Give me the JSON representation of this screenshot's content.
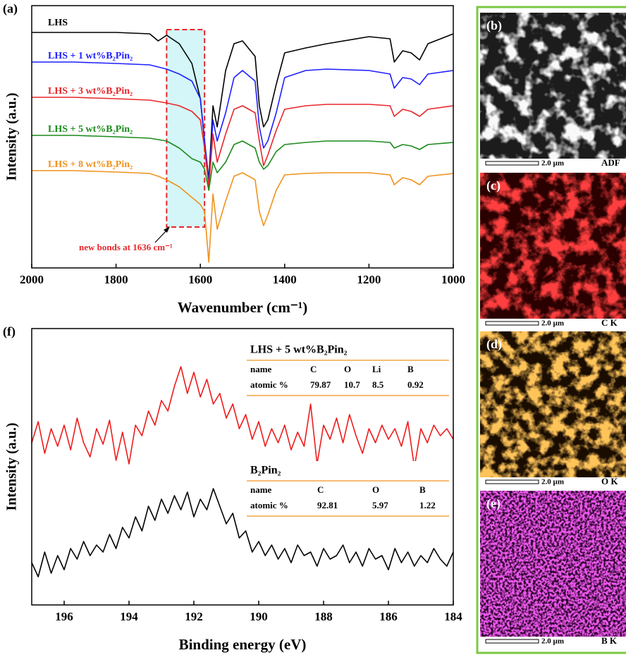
{
  "chart_data": [
    {
      "type": "line",
      "panel": "(a)",
      "xlabel": "Wavenumber (cm⁻¹)",
      "ylabel": "Intensity (a.u.)",
      "x": [
        2000,
        1900,
        1800,
        1720,
        1700,
        1680,
        1650,
        1620,
        1600,
        1590,
        1580,
        1570,
        1560,
        1540,
        1520,
        1500,
        1470,
        1460,
        1450,
        1440,
        1420,
        1400,
        1350,
        1300,
        1200,
        1150,
        1140,
        1120,
        1100,
        1080,
        1060,
        1000
      ],
      "xlim": [
        2000,
        1000
      ],
      "xticks": [
        2000,
        1800,
        1600,
        1400,
        1200,
        1000
      ],
      "ylim": [
        0,
        372
      ],
      "series": [
        {
          "name": "LHS",
          "color": "#000000",
          "values": [
            334,
            334,
            334,
            332,
            322,
            330,
            318,
            290,
            240,
            180,
            125,
            230,
            200,
            280,
            318,
            322,
            300,
            230,
            200,
            210,
            260,
            305,
            312,
            318,
            328,
            325,
            292,
            308,
            305,
            295,
            318,
            332
          ]
        },
        {
          "name": "LHS + 1 wt%B₂Pin₂",
          "color": "#1f1fff",
          "values": [
            292,
            292,
            290,
            288,
            285,
            282,
            275,
            265,
            240,
            180,
            120,
            210,
            180,
            220,
            270,
            280,
            265,
            200,
            170,
            180,
            220,
            270,
            280,
            282,
            280,
            275,
            255,
            270,
            268,
            260,
            275,
            280
          ]
        },
        {
          "name": "LHS + 3 wt%B₂Pin₂",
          "color": "#e8262a",
          "values": [
            242,
            242,
            240,
            238,
            236,
            234,
            230,
            222,
            210,
            170,
            115,
            190,
            150,
            190,
            225,
            230,
            220,
            180,
            145,
            160,
            195,
            225,
            230,
            232,
            232,
            230,
            215,
            225,
            222,
            215,
            225,
            230
          ]
        },
        {
          "name": "LHS + 5 wt%B₂Pin₂",
          "color": "#1c8a1c",
          "values": [
            188,
            188,
            186,
            184,
            182,
            180,
            170,
            155,
            150,
            140,
            110,
            150,
            135,
            150,
            175,
            180,
            170,
            150,
            140,
            145,
            165,
            175,
            178,
            180,
            180,
            178,
            170,
            175,
            173,
            168,
            175,
            178
          ]
        },
        {
          "name": "LHS + 8 wt%B₂Pin₂",
          "color": "#f0921e",
          "values": [
            138,
            138,
            136,
            134,
            130,
            125,
            115,
            100,
            90,
            80,
            8,
            105,
            55,
            95,
            130,
            135,
            125,
            80,
            60,
            75,
            110,
            132,
            134,
            135,
            135,
            132,
            118,
            128,
            125,
            118,
            130,
            134
          ]
        }
      ],
      "highlight_x": [
        1680,
        1590
      ],
      "annotation": "new bonds at 1636 cm⁻¹"
    },
    {
      "type": "line",
      "panel": "(f)",
      "xlabel": "Binding energy (eV)",
      "ylabel": "Intensity (a.u.)",
      "x": [
        197.0,
        196.8,
        196.6,
        196.4,
        196.2,
        196.0,
        195.8,
        195.6,
        195.4,
        195.2,
        195.0,
        194.8,
        194.6,
        194.4,
        194.2,
        194.0,
        193.8,
        193.6,
        193.4,
        193.2,
        193.0,
        192.8,
        192.6,
        192.4,
        192.2,
        192.0,
        191.8,
        191.6,
        191.4,
        191.2,
        191.0,
        190.8,
        190.6,
        190.4,
        190.2,
        190.0,
        189.8,
        189.6,
        189.4,
        189.2,
        189.0,
        188.8,
        188.6,
        188.4,
        188.2,
        188.0,
        187.8,
        187.6,
        187.4,
        187.2,
        187.0,
        186.8,
        186.6,
        186.4,
        186.2,
        186.0,
        185.8,
        185.6,
        185.4,
        185.2,
        185.0,
        184.8,
        184.6,
        184.4,
        184.2,
        184.0
      ],
      "xlim": [
        197,
        184
      ],
      "xticks": [
        196,
        194,
        192,
        190,
        188,
        186,
        184
      ],
      "ylim": [
        0,
        392
      ],
      "series": [
        {
          "color": "#ee1c1c",
          "values": [
            230,
            260,
            215,
            250,
            225,
            255,
            220,
            265,
            230,
            210,
            250,
            228,
            262,
            205,
            245,
            200,
            255,
            240,
            275,
            255,
            290,
            275,
            310,
            338,
            300,
            330,
            295,
            320,
            285,
            300,
            265,
            285,
            250,
            270,
            235,
            260,
            225,
            250,
            230,
            255,
            220,
            245,
            225,
            285,
            200,
            255,
            235,
            265,
            230,
            270,
            240,
            215,
            250,
            230,
            255,
            235,
            250,
            225,
            260,
            195,
            250,
            230,
            255,
            240,
            250,
            235
          ]
        },
        {
          "color": "#000000",
          "values": [
            60,
            40,
            75,
            45,
            70,
            50,
            80,
            65,
            90,
            70,
            85,
            75,
            100,
            80,
            110,
            95,
            125,
            105,
            140,
            120,
            150,
            130,
            155,
            135,
            160,
            125,
            150,
            135,
            165,
            140,
            115,
            130,
            95,
            105,
            75,
            90,
            70,
            85,
            65,
            80,
            60,
            85,
            70,
            75,
            55,
            80,
            65,
            70,
            85,
            60,
            75,
            55,
            80,
            65,
            70,
            50,
            80,
            60,
            75,
            55,
            70,
            60,
            80,
            65,
            55,
            75
          ]
        }
      ],
      "tables": [
        {
          "title": "LHS + 5 wt%B₂Pin₂",
          "header": [
            "name",
            "C",
            "O",
            "Li",
            "B"
          ],
          "rows": [
            [
              "atomic %",
              79.87,
              10.7,
              8.5,
              0.92
            ]
          ]
        },
        {
          "title": "B₂Pin₂",
          "header": [
            "name",
            "C",
            "O",
            "B"
          ],
          "rows": [
            [
              "atomic %",
              92.81,
              5.97,
              1.22
            ]
          ]
        }
      ]
    }
  ],
  "images": [
    {
      "label": "(b)",
      "scale": "2.0 µm",
      "channel": "ADF"
    },
    {
      "label": "(c)",
      "scale": "2.0 µm",
      "channel": "C K"
    },
    {
      "label": "(d)",
      "scale": "2.0 µm",
      "channel": "O K"
    },
    {
      "label": "(e)",
      "scale": "2.0 µm",
      "channel": "B K"
    }
  ]
}
